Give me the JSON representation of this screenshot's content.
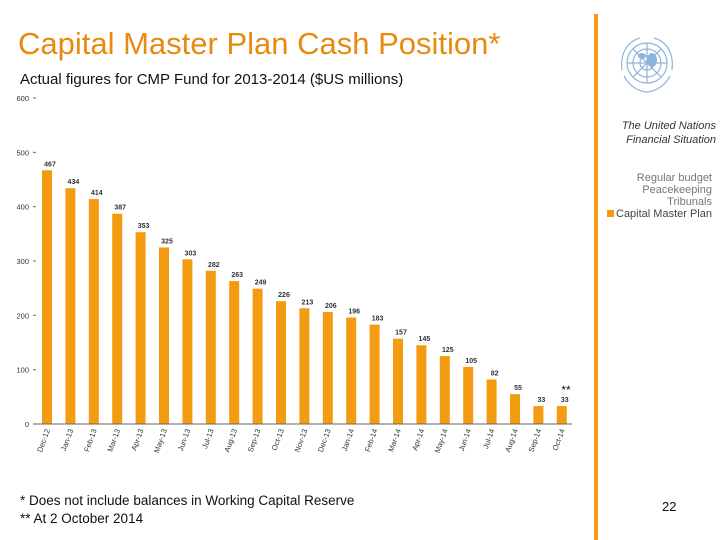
{
  "title": "Capital Master Plan Cash Position*",
  "subtitle": "Actual figures for CMP Fund for 2013-2014 ($US millions)",
  "sidebar": {
    "title": "The United Nations Financial Situation",
    "items": [
      {
        "label": "Regular budget",
        "active": false
      },
      {
        "label": "Peacekeeping",
        "active": false
      },
      {
        "label": "Tribunals",
        "active": false
      },
      {
        "label": "Capital Master Plan",
        "active": true
      }
    ]
  },
  "chart_data": {
    "type": "bar",
    "categories": [
      "Dec-12",
      "Jan-13",
      "Feb-13",
      "Mar-13",
      "Apr-13",
      "May-13",
      "Jun-13",
      "Jul-13",
      "Aug-13",
      "Sep-13",
      "Oct-13",
      "Nov-13",
      "Dec-13",
      "Jan-14",
      "Feb-14",
      "Mar-14",
      "Apr-14",
      "May-14",
      "Jun-14",
      "Jul-14",
      "Aug-14",
      "Sep-14",
      "Oct-14"
    ],
    "values": [
      467,
      434,
      414,
      387,
      353,
      325,
      303,
      282,
      263,
      249,
      226,
      213,
      206,
      196,
      183,
      157,
      145,
      125,
      105,
      82,
      55,
      33,
      33
    ],
    "ylim": [
      0,
      600
    ],
    "yticks": [
      0,
      100,
      200,
      300,
      400,
      500,
      600
    ],
    "bar_color": "#f39c12",
    "annotation": "**",
    "grid": false
  },
  "footnotes": [
    "* Does not include balances in Working Capital Reserve",
    "** At 2 October 2014"
  ],
  "page_number": "22"
}
